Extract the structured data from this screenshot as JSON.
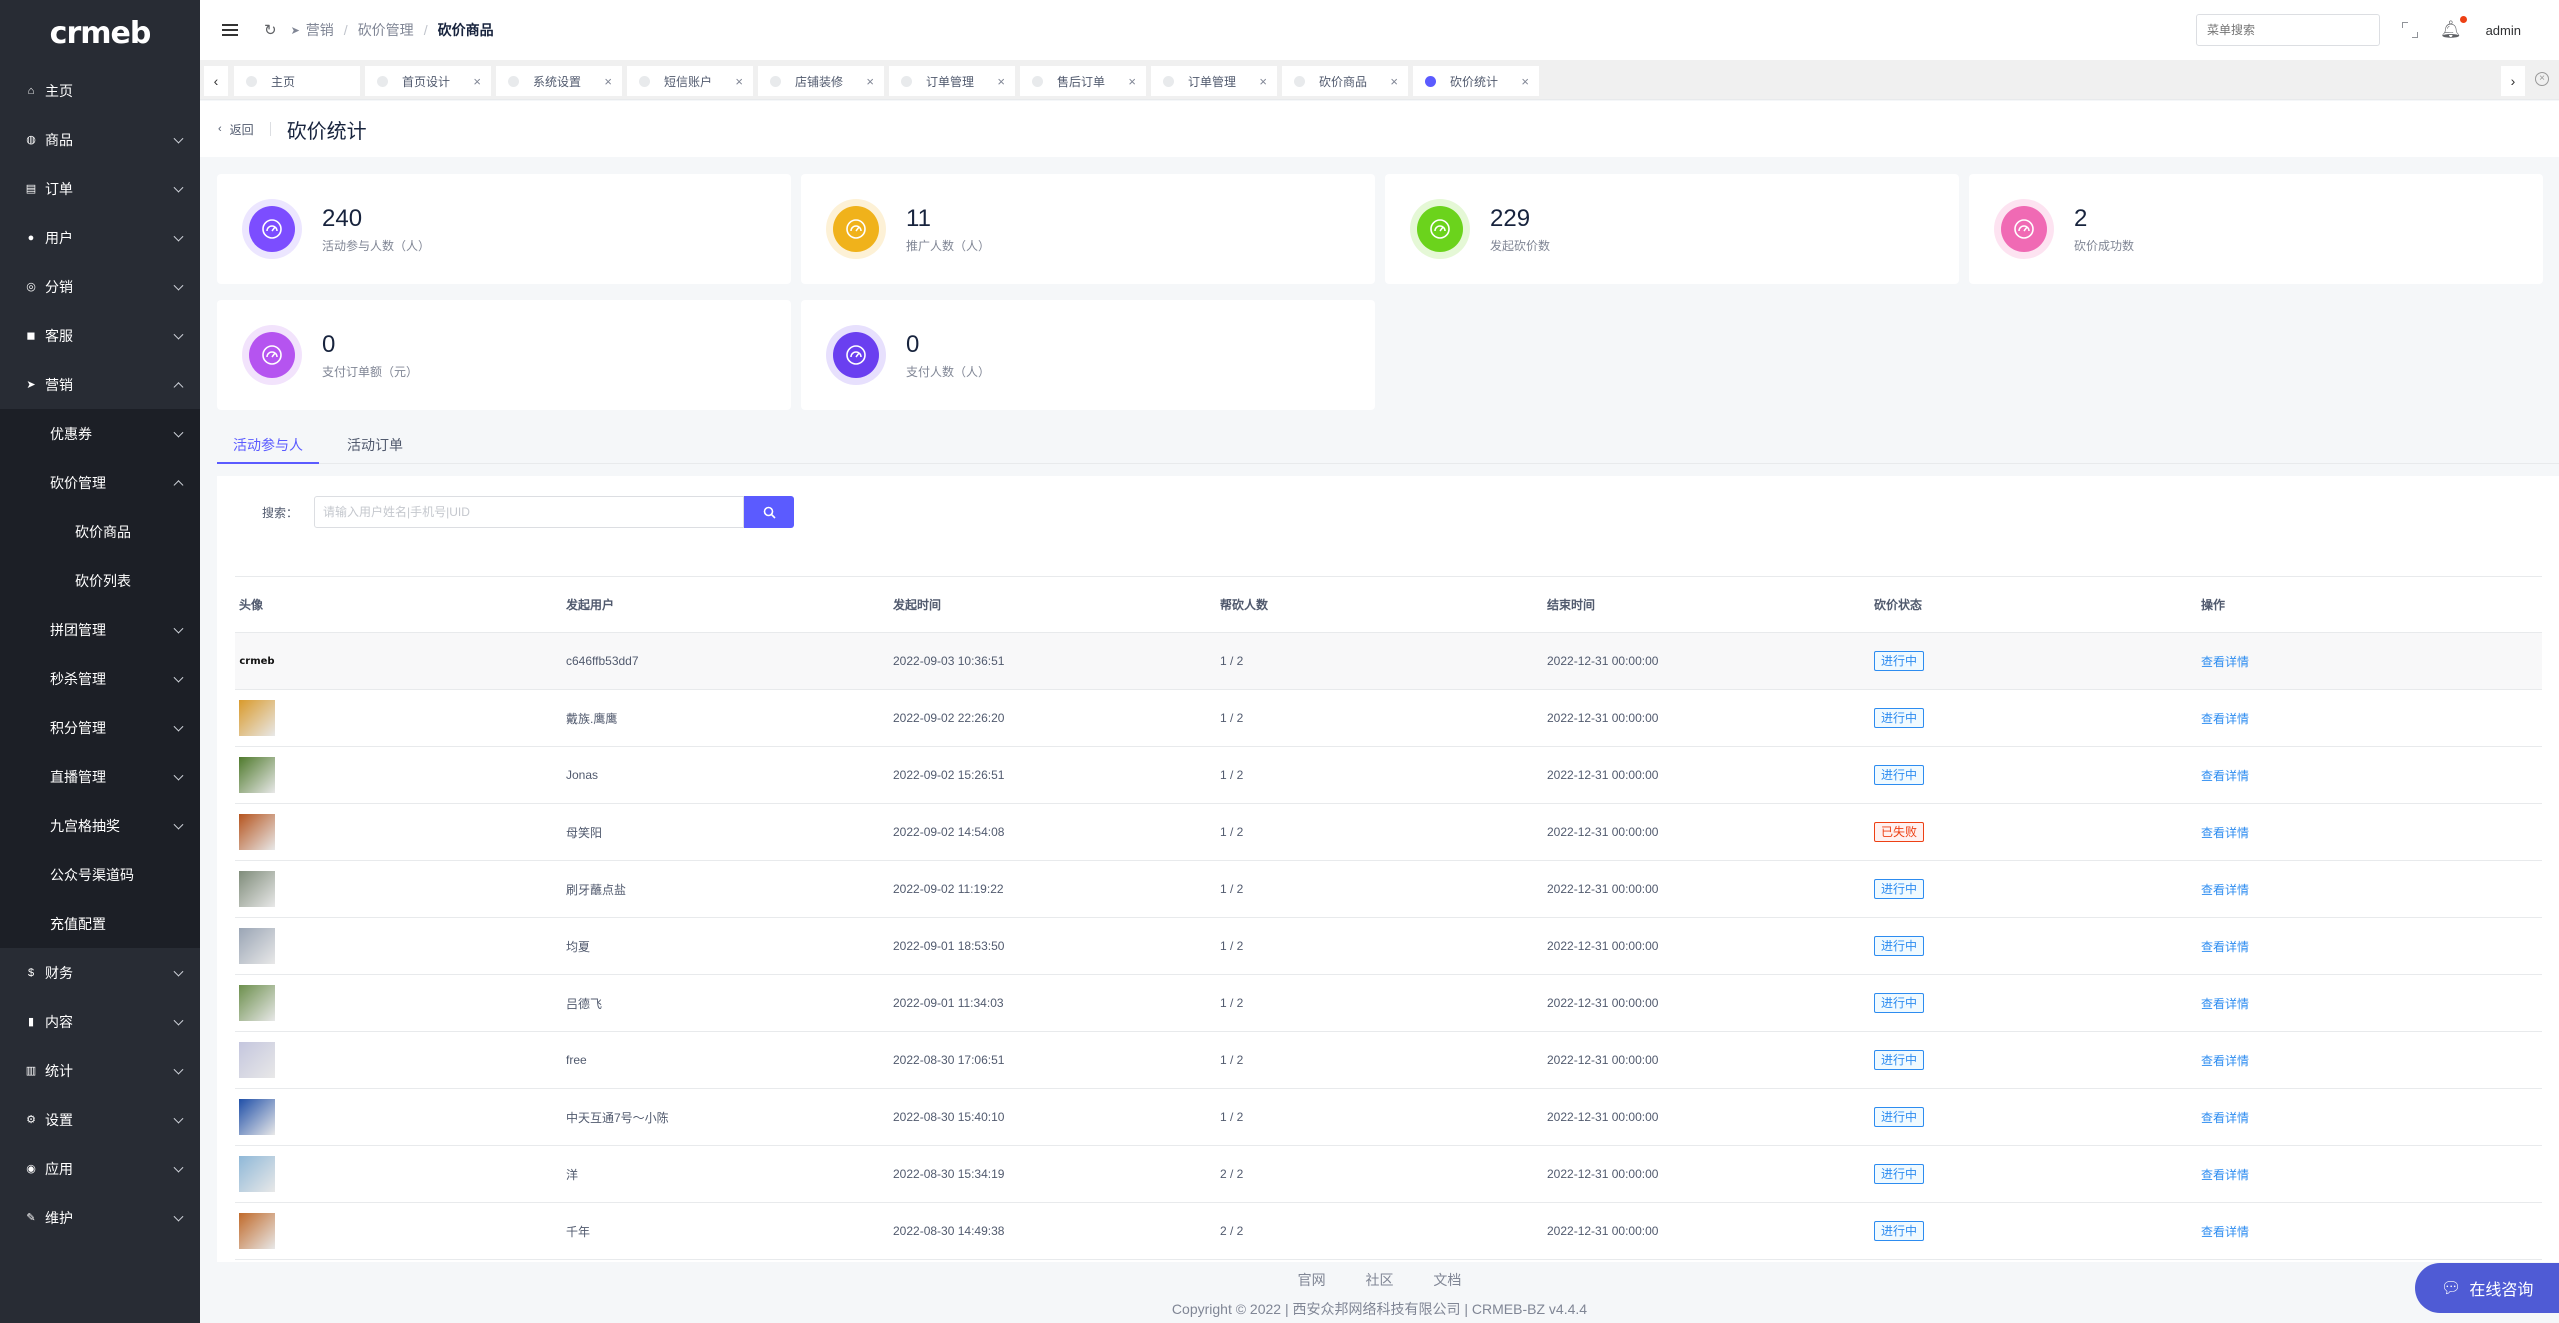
{
  "logo": "crmeb",
  "sidebar": {
    "items": [
      {
        "icon": "home-icon",
        "glyph": "⌂",
        "label": "主页",
        "chev": false
      },
      {
        "icon": "bag-icon",
        "glyph": "◍",
        "label": "商品",
        "chev": true
      },
      {
        "icon": "cart-icon",
        "glyph": "▤",
        "label": "订单",
        "chev": true
      },
      {
        "icon": "user-icon",
        "glyph": "●",
        "label": "用户",
        "chev": true
      },
      {
        "icon": "share-icon",
        "glyph": "◎",
        "label": "分销",
        "chev": true
      },
      {
        "icon": "chat-icon",
        "glyph": "◼",
        "label": "客服",
        "chev": true
      },
      {
        "icon": "send-icon",
        "glyph": "➤",
        "label": "营销",
        "chev": true
      }
    ],
    "marketing_sub": [
      "优惠券",
      "砍价管理"
    ],
    "bargain_sub": [
      "砍价商品",
      "砍价列表"
    ],
    "marketing_sub2": [
      "拼团管理",
      "秒杀管理",
      "积分管理",
      "直播管理",
      "九宫格抽奖",
      "公众号渠道码",
      "充值配置"
    ],
    "bottom_items": [
      {
        "icon": "dollar-icon",
        "glyph": "$",
        "label": "财务"
      },
      {
        "icon": "book-icon",
        "glyph": "▮",
        "label": "内容"
      },
      {
        "icon": "chart-icon",
        "glyph": "▥",
        "label": "统计"
      },
      {
        "icon": "gear-icon",
        "glyph": "⚙",
        "label": "设置"
      },
      {
        "icon": "app-icon",
        "glyph": "◉",
        "label": "应用"
      },
      {
        "icon": "wrench-icon",
        "glyph": "✎",
        "label": "维护"
      }
    ]
  },
  "header": {
    "breadcrumb": [
      "营销",
      "砍价管理",
      "砍价商品"
    ],
    "search_placeholder": "菜单搜索",
    "user": "admin"
  },
  "tabs": [
    "主页",
    "首页设计",
    "系统设置",
    "短信账户",
    "店铺装修",
    "订单管理",
    "售后订单",
    "订单管理",
    "砍价商品",
    "砍价统计"
  ],
  "page": {
    "back": "返回",
    "title": "砍价统计"
  },
  "stats": [
    {
      "value": "240",
      "label": "活动参与人数（人）",
      "color": "#7c4dff",
      "ring": "#ece6ff"
    },
    {
      "value": "11",
      "label": "推广人数（人）",
      "color": "#f0b21b",
      "ring": "#fdf1d6"
    },
    {
      "value": "229",
      "label": "发起砍价数",
      "color": "#6bd31c",
      "ring": "#e5f8d6"
    },
    {
      "value": "2",
      "label": "砍价成功数",
      "color": "#f06ab4",
      "ring": "#fde3f1"
    },
    {
      "value": "0",
      "label": "支付订单额（元）",
      "color": "#b554f0",
      "ring": "#f2e3fc"
    },
    {
      "value": "0",
      "label": "支付人数（人）",
      "color": "#6a3ff0",
      "ring": "#e7e0fd"
    }
  ],
  "content_tabs": [
    "活动参与人",
    "活动订单"
  ],
  "search": {
    "label": "搜索：",
    "placeholder": "请输入用户姓名|手机号|UID"
  },
  "table": {
    "headers": [
      "头像",
      "发起用户",
      "发起时间",
      "帮砍人数",
      "结束时间",
      "砍价状态",
      "操作"
    ],
    "rows": [
      {
        "user": "c646ffb53dd7",
        "start": "2022-09-03 10:36:51",
        "helpers": "1 / 2",
        "end": "2022-12-31 00:00:00",
        "status": "进行中",
        "status_type": "blue",
        "action": "查看详情",
        "avatar": "logo"
      },
      {
        "user": "戴族.鹰鹰",
        "start": "2022-09-02 22:26:20",
        "helpers": "1 / 2",
        "end": "2022-12-31 00:00:00",
        "status": "进行中",
        "status_type": "blue",
        "action": "查看详情",
        "avatar": "#d99a2b"
      },
      {
        "user": "Jonas",
        "start": "2022-09-02 15:26:51",
        "helpers": "1 / 2",
        "end": "2022-12-31 00:00:00",
        "status": "进行中",
        "status_type": "blue",
        "action": "查看详情",
        "avatar": "#4f7a2c"
      },
      {
        "user": "母笑阳",
        "start": "2022-09-02 14:54:08",
        "helpers": "1 / 2",
        "end": "2022-12-31 00:00:00",
        "status": "已失败",
        "status_type": "red",
        "action": "查看详情",
        "avatar": "#b5541e"
      },
      {
        "user": "刷牙蘸点盐",
        "start": "2022-09-02 11:19:22",
        "helpers": "1 / 2",
        "end": "2022-12-31 00:00:00",
        "status": "进行中",
        "status_type": "blue",
        "action": "查看详情",
        "avatar": "#7f8c7a"
      },
      {
        "user": "均夏",
        "start": "2022-09-01 18:53:50",
        "helpers": "1 / 2",
        "end": "2022-12-31 00:00:00",
        "status": "进行中",
        "status_type": "blue",
        "action": "查看详情",
        "avatar": "#9aa5b5"
      },
      {
        "user": "吕德飞",
        "start": "2022-09-01 11:34:03",
        "helpers": "1 / 2",
        "end": "2022-12-31 00:00:00",
        "status": "进行中",
        "status_type": "blue",
        "action": "查看详情",
        "avatar": "#6c8f4c"
      },
      {
        "user": "free",
        "start": "2022-08-30 17:06:51",
        "helpers": "1 / 2",
        "end": "2022-12-31 00:00:00",
        "status": "进行中",
        "status_type": "blue",
        "action": "查看详情",
        "avatar": "#c4c6de"
      },
      {
        "user": "中天互通7号～小陈",
        "start": "2022-08-30 15:40:10",
        "helpers": "1 / 2",
        "end": "2022-12-31 00:00:00",
        "status": "进行中",
        "status_type": "blue",
        "action": "查看详情",
        "avatar": "#1f4fa8"
      },
      {
        "user": "洋",
        "start": "2022-08-30 15:34:19",
        "helpers": "2 / 2",
        "end": "2022-12-31 00:00:00",
        "status": "进行中",
        "status_type": "blue",
        "action": "查看详情",
        "avatar": "#8fb8d8"
      },
      {
        "user": "千年",
        "start": "2022-08-30 14:49:38",
        "helpers": "2 / 2",
        "end": "2022-12-31 00:00:00",
        "status": "进行中",
        "status_type": "blue",
        "action": "查看详情",
        "avatar": "#c06a2a"
      }
    ]
  },
  "footer": {
    "links": [
      "官网",
      "社区",
      "文档"
    ],
    "copyright": "Copyright © 2022 | 西安众邦网络科技有限公司 | CRMEB-BZ v4.4.4"
  },
  "chat": "在线咨询"
}
